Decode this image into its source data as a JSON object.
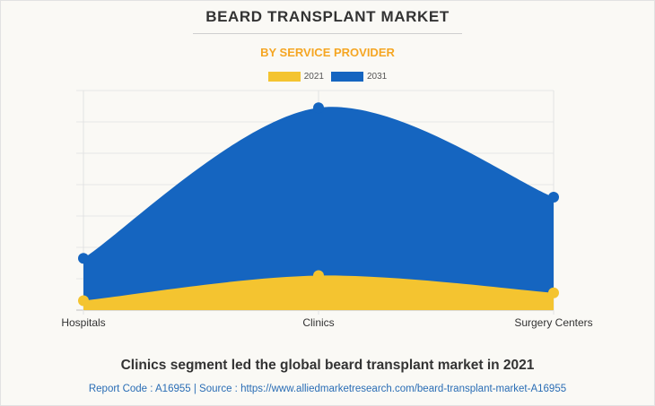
{
  "header": {
    "title": "BEARD TRANSPLANT MARKET",
    "subtitle": "BY SERVICE PROVIDER"
  },
  "colors": {
    "series_2021": "#f4c430",
    "series_2031": "#1565c0",
    "subtitle": "#f5a623",
    "source_text": "#2a6db5",
    "background": "#faf9f5"
  },
  "chart_data": {
    "type": "area",
    "title": "BEARD TRANSPLANT MARKET",
    "subtitle": "BY SERVICE PROVIDER",
    "categories": [
      "Hospitals",
      "Clinics",
      "Surgery Centers"
    ],
    "series": [
      {
        "name": "2021",
        "values": [
          0.3,
          1.1,
          0.55
        ]
      },
      {
        "name": "2031",
        "values": [
          1.65,
          6.45,
          3.6
        ]
      }
    ],
    "xlabel": "",
    "ylabel": "",
    "ylim": [
      0,
      7
    ],
    "y_gridlines": 7,
    "y_tick_labels_shown": false,
    "grid": true,
    "smooth": true,
    "legend": "top-center"
  },
  "footer": {
    "caption": "Clinics segment led the global beard transplant market in 2021",
    "source": "Report Code : A16955  |  Source : https://www.alliedmarketresearch.com/beard-transplant-market-A16955"
  }
}
